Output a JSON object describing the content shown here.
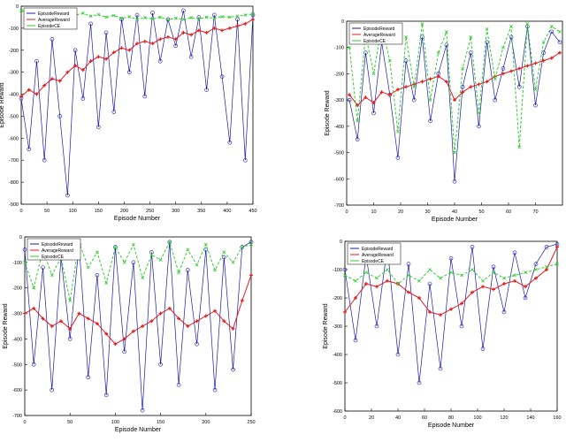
{
  "chart_data": [
    {
      "type": "line",
      "xlabel": "Episode Number",
      "ylabel": "Episode Reward",
      "legend_position": "top-left",
      "xlim": [
        0,
        450
      ],
      "ylim": [
        -900,
        0
      ],
      "xticks": [
        0,
        50,
        100,
        150,
        200,
        250,
        300,
        350,
        400,
        450
      ],
      "yticks": [
        0,
        -100,
        -200,
        -300,
        -400,
        -500,
        -600,
        -700,
        -800,
        -900
      ],
      "xtick_labels": [
        "0",
        "50",
        "100",
        "150",
        "200",
        "250",
        "300",
        "350",
        "400",
        "450"
      ],
      "ytick_labels": [
        "0",
        "-100",
        "-200",
        "-300",
        "-400",
        "-500",
        "-600",
        "-700",
        "-800",
        "-900"
      ],
      "series": [
        {
          "name": "EpisodeReward",
          "color": "#1a1aa8",
          "marker": "circle",
          "x": [
            0,
            15,
            30,
            45,
            60,
            75,
            90,
            105,
            120,
            135,
            150,
            165,
            180,
            195,
            210,
            225,
            240,
            255,
            270,
            285,
            300,
            315,
            330,
            345,
            360,
            375,
            390,
            405,
            420,
            435,
            450
          ],
          "values": [
            -420,
            -650,
            -250,
            -700,
            -150,
            -500,
            -860,
            -200,
            -420,
            -80,
            -550,
            -120,
            -480,
            -60,
            -300,
            -40,
            -410,
            -30,
            -250,
            -60,
            -180,
            -20,
            -230,
            -50,
            -380,
            -40,
            -320,
            -620,
            -60,
            -700,
            -40
          ]
        },
        {
          "name": "AverageReward",
          "color": "#e41a1c",
          "marker": "plus",
          "x": [
            0,
            15,
            30,
            45,
            60,
            75,
            90,
            105,
            120,
            135,
            150,
            165,
            180,
            195,
            210,
            225,
            240,
            255,
            270,
            285,
            300,
            315,
            330,
            345,
            360,
            375,
            390,
            405,
            420,
            435,
            450
          ],
          "values": [
            -410,
            -380,
            -400,
            -360,
            -330,
            -340,
            -300,
            -270,
            -290,
            -250,
            -230,
            -240,
            -210,
            -190,
            -200,
            -170,
            -160,
            -170,
            -150,
            -140,
            -150,
            -120,
            -130,
            -110,
            -120,
            -100,
            -110,
            -100,
            -90,
            -80,
            -60
          ]
        },
        {
          "name": "EpisodeCE",
          "color": "#33cc33",
          "marker": "x",
          "x": [
            0,
            15,
            30,
            45,
            60,
            75,
            90,
            105,
            120,
            135,
            150,
            165,
            180,
            195,
            210,
            225,
            240,
            255,
            270,
            285,
            300,
            315,
            330,
            345,
            360,
            375,
            390,
            405,
            420,
            435,
            450
          ],
          "values": [
            -20,
            -25,
            -18,
            -30,
            -22,
            -35,
            -28,
            -40,
            -32,
            -45,
            -38,
            -50,
            -42,
            -55,
            -48,
            -60,
            -52,
            -58,
            -50,
            -62,
            -55,
            -60,
            -52,
            -58,
            -50,
            -55,
            -48,
            -50,
            -45,
            -40,
            -35
          ]
        }
      ]
    },
    {
      "type": "line",
      "xlabel": "Episode Number",
      "ylabel": "Episode Reward",
      "legend_position": "top-left",
      "xlim": [
        0,
        80
      ],
      "ylim": [
        -700,
        0
      ],
      "xticks": [
        0,
        10,
        20,
        30,
        40,
        50,
        60,
        70
      ],
      "yticks": [
        0,
        -100,
        -200,
        -300,
        -400,
        -500,
        -600,
        -700
      ],
      "xtick_labels": [
        "0",
        "10",
        "20",
        "30",
        "40",
        "50",
        "60",
        "70"
      ],
      "ytick_labels": [
        "0",
        "-100",
        "-200",
        "-300",
        "-400",
        "-500",
        "-600",
        "-700"
      ],
      "series": [
        {
          "name": "EpisodeReward",
          "color": "#1a1aa8",
          "marker": "circle",
          "x": [
            1,
            4,
            7,
            10,
            13,
            16,
            19,
            22,
            25,
            28,
            31,
            34,
            37,
            40,
            43,
            46,
            49,
            52,
            55,
            58,
            61,
            64,
            67,
            70,
            73,
            76,
            79
          ],
          "values": [
            -300,
            -450,
            -120,
            -350,
            -80,
            -280,
            -520,
            -150,
            -300,
            -60,
            -380,
            -200,
            -90,
            -610,
            -250,
            -120,
            -400,
            -80,
            -300,
            -180,
            -60,
            -250,
            -20,
            -320,
            -120,
            -40,
            -80
          ]
        },
        {
          "name": "AverageReward",
          "color": "#e41a1c",
          "marker": "plus",
          "x": [
            1,
            4,
            7,
            10,
            13,
            16,
            19,
            22,
            25,
            28,
            31,
            34,
            37,
            40,
            43,
            46,
            49,
            52,
            55,
            58,
            61,
            64,
            67,
            70,
            73,
            76,
            79
          ],
          "values": [
            -280,
            -320,
            -290,
            -310,
            -270,
            -280,
            -260,
            -250,
            -240,
            -230,
            -220,
            -210,
            -230,
            -300,
            -270,
            -250,
            -240,
            -230,
            -210,
            -200,
            -190,
            -180,
            -170,
            -160,
            -150,
            -140,
            -120
          ]
        },
        {
          "name": "EpisodeCE",
          "color": "#33cc33",
          "marker": "x",
          "x": [
            1,
            4,
            7,
            10,
            13,
            16,
            19,
            22,
            25,
            28,
            31,
            34,
            37,
            40,
            43,
            46,
            49,
            52,
            55,
            58,
            61,
            64,
            67,
            70,
            73,
            76,
            79
          ],
          "values": [
            -100,
            -380,
            -50,
            -200,
            -20,
            -150,
            -420,
            -60,
            -250,
            -10,
            -300,
            -120,
            -40,
            -500,
            -180,
            -60,
            -350,
            -30,
            -220,
            -100,
            -20,
            -480,
            -10,
            -260,
            -80,
            -20,
            -40
          ]
        }
      ]
    },
    {
      "type": "line",
      "xlabel": "Episode Number",
      "ylabel": "Episode Reward",
      "legend_position": "top-left",
      "xlim": [
        0,
        250
      ],
      "ylim": [
        -700,
        0
      ],
      "xticks": [
        0,
        50,
        100,
        150,
        200,
        250
      ],
      "yticks": [
        0,
        -100,
        -200,
        -300,
        -400,
        -500,
        -600,
        -700
      ],
      "xtick_labels": [
        "0",
        "50",
        "100",
        "150",
        "200",
        "250"
      ],
      "ytick_labels": [
        "0",
        "-100",
        "-200",
        "-300",
        "-400",
        "-500",
        "-600",
        "-700"
      ],
      "series": [
        {
          "name": "EpisodeReward",
          "color": "#1a1aa8",
          "marker": "circle",
          "x": [
            0,
            10,
            20,
            30,
            40,
            50,
            60,
            70,
            80,
            90,
            100,
            110,
            120,
            130,
            140,
            150,
            160,
            170,
            180,
            190,
            200,
            210,
            220,
            230,
            240,
            250
          ],
          "values": [
            -50,
            -500,
            -120,
            -600,
            -80,
            -400,
            -30,
            -550,
            -150,
            -620,
            -40,
            -450,
            -100,
            -680,
            -60,
            -500,
            -20,
            -580,
            -130,
            -420,
            -50,
            -600,
            -80,
            -520,
            -40,
            -20
          ]
        },
        {
          "name": "AverageReward",
          "color": "#e41a1c",
          "marker": "plus",
          "x": [
            0,
            10,
            20,
            30,
            40,
            50,
            60,
            70,
            80,
            90,
            100,
            110,
            120,
            130,
            140,
            150,
            160,
            170,
            180,
            190,
            200,
            210,
            220,
            230,
            240,
            250
          ],
          "values": [
            -300,
            -280,
            -320,
            -350,
            -330,
            -360,
            -300,
            -320,
            -340,
            -380,
            -420,
            -400,
            -370,
            -350,
            -330,
            -300,
            -280,
            -320,
            -350,
            -330,
            -310,
            -290,
            -330,
            -360,
            -250,
            -150
          ]
        },
        {
          "name": "EpisodeCE",
          "color": "#33cc33",
          "marker": "x",
          "x": [
            0,
            10,
            20,
            30,
            40,
            50,
            60,
            70,
            80,
            90,
            100,
            110,
            120,
            130,
            140,
            150,
            160,
            170,
            180,
            190,
            200,
            210,
            220,
            230,
            240,
            250
          ],
          "values": [
            -100,
            -200,
            -50,
            -150,
            -80,
            -250,
            -20,
            -120,
            -60,
            -180,
            -40,
            -100,
            -30,
            -160,
            -70,
            -90,
            -20,
            -140,
            -50,
            -110,
            -30,
            -130,
            -60,
            -100,
            -40,
            -30
          ]
        }
      ]
    },
    {
      "type": "line",
      "xlabel": "Episode Number",
      "ylabel": "Episode Reward",
      "legend_position": "top-left",
      "xlim": [
        0,
        160
      ],
      "ylim": [
        -600,
        0
      ],
      "xticks": [
        0,
        20,
        40,
        60,
        80,
        100,
        120,
        140,
        160
      ],
      "yticks": [
        0,
        -100,
        -200,
        -300,
        -400,
        -500,
        -600
      ],
      "xtick_labels": [
        "0",
        "20",
        "40",
        "60",
        "80",
        "100",
        "120",
        "140",
        "160"
      ],
      "ytick_labels": [
        "0",
        "-100",
        "-200",
        "-300",
        "-400",
        "-500",
        "-600"
      ],
      "series": [
        {
          "name": "EpisodeReward",
          "color": "#1a1aa8",
          "marker": "circle",
          "x": [
            0,
            8,
            16,
            24,
            32,
            40,
            48,
            56,
            64,
            72,
            80,
            88,
            96,
            104,
            112,
            120,
            128,
            136,
            144,
            152,
            160
          ],
          "values": [
            -100,
            -350,
            -50,
            -300,
            -20,
            -400,
            -80,
            -500,
            -150,
            -450,
            -60,
            -300,
            -20,
            -380,
            -90,
            -250,
            -40,
            -200,
            -80,
            -20,
            -10
          ]
        },
        {
          "name": "AverageReward",
          "color": "#e41a1c",
          "marker": "plus",
          "x": [
            0,
            8,
            16,
            24,
            32,
            40,
            48,
            56,
            64,
            72,
            80,
            88,
            96,
            104,
            112,
            120,
            128,
            136,
            144,
            152,
            160
          ],
          "values": [
            -250,
            -200,
            -150,
            -160,
            -140,
            -150,
            -180,
            -200,
            -250,
            -260,
            -240,
            -220,
            -180,
            -160,
            -170,
            -150,
            -140,
            -160,
            -130,
            -100,
            -20
          ]
        },
        {
          "name": "EpisodeCE",
          "color": "#33cc33",
          "marker": "x",
          "x": [
            0,
            8,
            16,
            24,
            32,
            40,
            48,
            56,
            64,
            72,
            80,
            88,
            96,
            104,
            112,
            120,
            128,
            136,
            144,
            152,
            160
          ],
          "values": [
            -120,
            -140,
            -110,
            -130,
            -100,
            -150,
            -120,
            -140,
            -100,
            -130,
            -110,
            -120,
            -100,
            -140,
            -110,
            -130,
            -120,
            -110,
            -100,
            -90,
            -80
          ]
        }
      ]
    }
  ]
}
